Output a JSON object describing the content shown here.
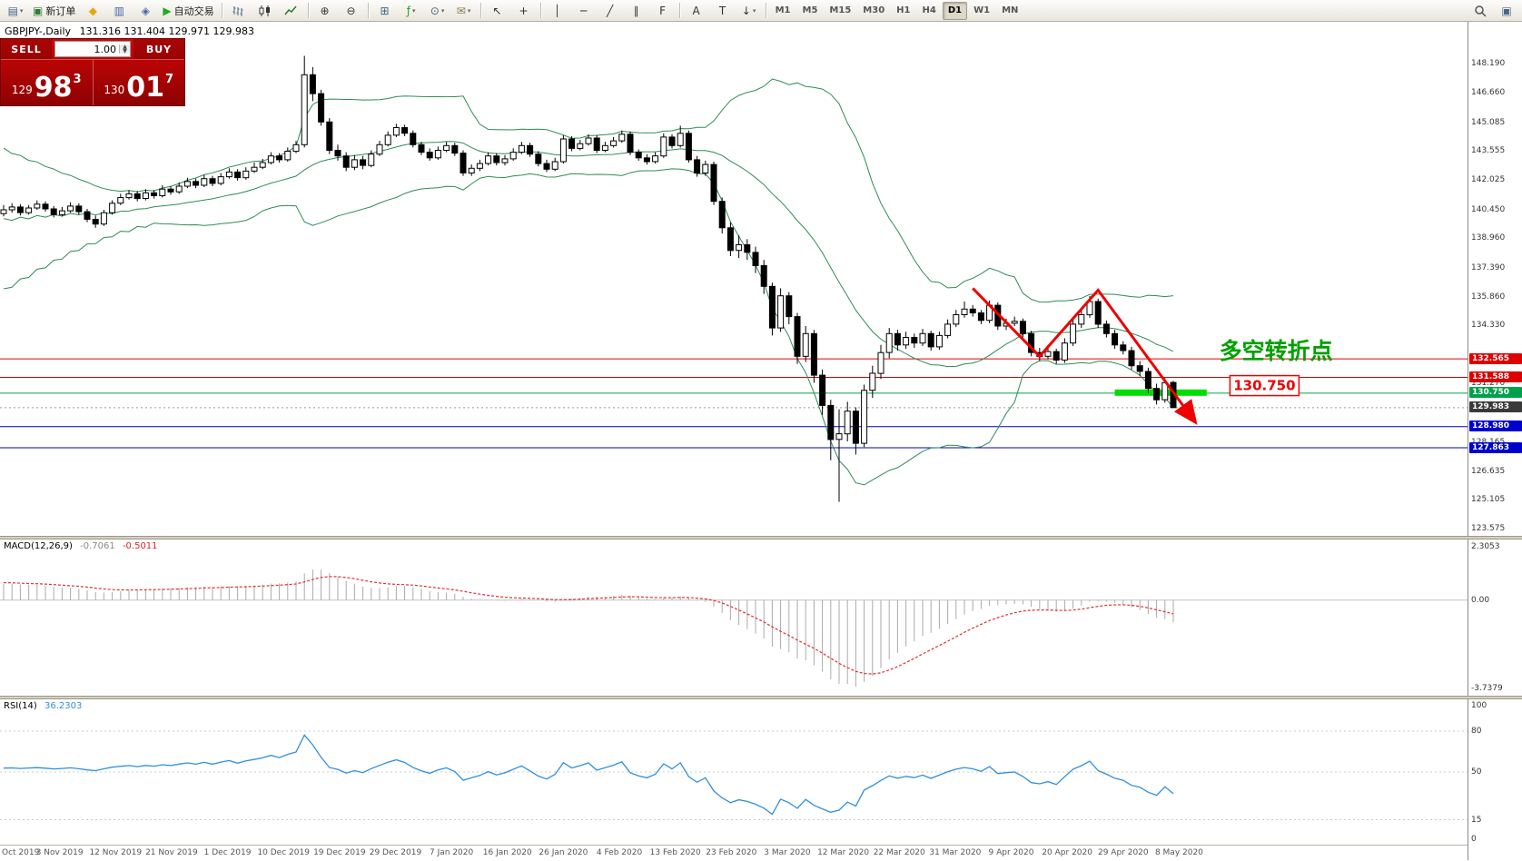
{
  "toolbar": {
    "items": [
      {
        "n": "new-chart-icon",
        "g": "▤",
        "c": "#446688",
        "dd": true
      },
      {
        "n": "new-order-button",
        "g": "▣",
        "c": "#2e7d32",
        "l": "新订单"
      },
      {
        "n": "metaeditor-icon",
        "g": "◆",
        "c": "#e6a817"
      },
      {
        "n": "market-watch-icon",
        "g": "▥",
        "c": "#4466aa"
      },
      {
        "n": "navigator-icon",
        "g": "◈",
        "c": "#4466aa"
      },
      {
        "n": "auto-trading-button",
        "g": "▶",
        "c": "#1faa1f",
        "l": "自动交易"
      },
      {
        "t": "sep"
      },
      {
        "n": "bar-chart-icon",
        "svg": "bars"
      },
      {
        "n": "candlestick-chart-icon",
        "svg": "candles"
      },
      {
        "n": "line-chart-icon",
        "svg": "line"
      },
      {
        "t": "sep"
      },
      {
        "n": "zoom-in-icon",
        "g": "⊕",
        "c": "#333"
      },
      {
        "n": "zoom-out-icon",
        "g": "⊖",
        "c": "#333"
      },
      {
        "t": "sep"
      },
      {
        "n": "tile-windows-icon",
        "g": "⊞",
        "c": "#446688"
      },
      {
        "n": "indicators-icon",
        "g": "ƒ",
        "c": "#1faa1f",
        "dd": true
      },
      {
        "n": "periods-icon",
        "g": "⊙",
        "c": "#446688",
        "dd": true
      },
      {
        "n": "templates-icon",
        "g": "✉",
        "c": "#8a7a50",
        "dd": true
      },
      {
        "t": "sep"
      },
      {
        "n": "cursor-icon",
        "g": "↖",
        "c": "#333"
      },
      {
        "n": "crosshair-icon",
        "g": "+",
        "c": "#333"
      },
      {
        "t": "sep"
      },
      {
        "n": "vertical-line-icon",
        "g": "│",
        "c": "#333"
      },
      {
        "n": "horizontal-line-icon",
        "g": "─",
        "c": "#333"
      },
      {
        "n": "trendline-icon",
        "g": "╱",
        "c": "#333"
      },
      {
        "n": "equidistant-channel-icon",
        "g": "∥",
        "c": "#333"
      },
      {
        "n": "fibonacci-icon",
        "g": "F",
        "c": "#333"
      },
      {
        "t": "sep"
      },
      {
        "n": "text-icon",
        "g": "A",
        "c": "#333"
      },
      {
        "n": "text-label-icon",
        "g": "T",
        "c": "#333"
      },
      {
        "n": "arrows-icon",
        "g": "↓",
        "c": "#333",
        "dd": true
      },
      {
        "t": "sep"
      },
      {
        "t": "tf"
      },
      {
        "t": "spring"
      },
      {
        "n": "search-icon",
        "svg": "magnifier"
      },
      {
        "n": "chat-icon",
        "g": "▣",
        "c": "#446688"
      }
    ],
    "timeframes": {
      "items": [
        "M1",
        "M5",
        "M15",
        "M30",
        "H1",
        "H4",
        "D1",
        "W1",
        "MN"
      ],
      "active": "D1"
    }
  },
  "chart_header": {
    "symbol": "GBPJPY-,Daily",
    "ohlc_text": "131.316 131.404 129.971 129.983"
  },
  "trade_panel": {
    "sell_label": "SELL",
    "buy_label": "BUY",
    "volume": "1.00",
    "sell_price_prefix": "129",
    "sell_price_big": "98",
    "sell_price_sup": "3",
    "buy_price_prefix": "130",
    "buy_price_big": "01",
    "buy_price_sup": "7"
  },
  "x_axis_dates": [
    "Oct 2019",
    "3 Nov 2019",
    "12 Nov 2019",
    "21 Nov 2019",
    "1 Dec 2019",
    "10 Dec 2019",
    "19 Dec 2019",
    "29 Dec 2019",
    "7 Jan 2020",
    "16 Jan 2020",
    "26 Jan 2020",
    "4 Feb 2020",
    "13 Feb 2020",
    "23 Feb 2020",
    "3 Mar 2020",
    "12 Mar 2020",
    "22 Mar 2020",
    "31 Mar 2020",
    "9 Apr 2020",
    "20 Apr 2020",
    "29 Apr 2020",
    "8 May 2020"
  ],
  "chart_data": [
    {
      "type": "candlestick",
      "symbol": "GBPJPY-",
      "timeframe": "Daily",
      "title": "GBPJPY-,Daily",
      "ylim": [
        123.2,
        150.4
      ],
      "y_axis_labels": [
        148.19,
        146.66,
        145.085,
        143.555,
        142.025,
        140.45,
        138.96,
        137.39,
        135.86,
        134.33,
        132.8,
        131.27,
        129.74,
        128.165,
        126.635,
        125.105,
        123.575
      ],
      "current_price": 129.983,
      "bollinger": {
        "period": 20,
        "deviation": 2,
        "color": "#2e8b57"
      },
      "horizontal_lines": [
        {
          "price": 132.565,
          "color": "#dd0000"
        },
        {
          "price": 131.588,
          "color": "#dd0000"
        },
        {
          "price": 130.75,
          "color": "#00a14b"
        },
        {
          "price": 128.98,
          "color": "#0000cc"
        },
        {
          "price": 127.863,
          "color": "#0000cc"
        }
      ],
      "support_zone": {
        "price": 130.78,
        "from_index": 133,
        "to_index": 144,
        "color": "#00dd00"
      },
      "trend_arrow": {
        "color": "#ee0000",
        "points": [
          [
            116,
            136.3
          ],
          [
            124,
            132.7
          ],
          [
            131,
            136.2
          ],
          [
            142.5,
            129.3
          ]
        ]
      },
      "annotations": [
        {
          "name": "turning-point-text",
          "text": "多空转折点",
          "index": 145.5,
          "price": 133.0,
          "color": "#00a000"
        },
        {
          "name": "support-price-label",
          "text": "130.750",
          "index": 147,
          "price": 131.15,
          "color": "#ee0000"
        }
      ],
      "warmup_closes": [
        136.6,
        142.6,
        136.9,
        142.4,
        137.2,
        142.2,
        137.5,
        142.0,
        137.8,
        141.8,
        138.1,
        141.6,
        138.4,
        141.3,
        138.7,
        141.1,
        139.0,
        140.9,
        139.3,
        140.6
      ],
      "ohlc": [
        [
          140.25,
          140.7,
          140.1,
          140.45
        ],
        [
          140.45,
          140.8,
          140.3,
          140.6
        ],
        [
          140.6,
          140.75,
          140.15,
          140.3
        ],
        [
          140.3,
          140.7,
          140.2,
          140.55
        ],
        [
          140.55,
          140.95,
          140.45,
          140.75
        ],
        [
          140.75,
          140.9,
          140.35,
          140.5
        ],
        [
          140.5,
          140.65,
          140.05,
          140.2
        ],
        [
          140.2,
          140.6,
          140.1,
          140.4
        ],
        [
          140.4,
          140.85,
          140.3,
          140.65
        ],
        [
          140.65,
          140.8,
          140.2,
          140.35
        ],
        [
          140.35,
          140.5,
          139.8,
          139.95
        ],
        [
          139.95,
          140.15,
          139.5,
          139.7
        ],
        [
          139.7,
          140.45,
          139.6,
          140.3
        ],
        [
          140.3,
          140.95,
          140.2,
          140.8
        ],
        [
          140.8,
          141.3,
          140.7,
          141.1
        ],
        [
          141.1,
          141.5,
          141.0,
          141.3
        ],
        [
          141.3,
          141.45,
          140.9,
          141.05
        ],
        [
          141.05,
          141.55,
          140.95,
          141.35
        ],
        [
          141.35,
          141.5,
          141.05,
          141.2
        ],
        [
          141.2,
          141.75,
          141.1,
          141.55
        ],
        [
          141.55,
          141.7,
          141.25,
          141.4
        ],
        [
          141.4,
          141.9,
          141.3,
          141.7
        ],
        [
          141.7,
          142.15,
          141.6,
          141.95
        ],
        [
          141.95,
          142.1,
          141.6,
          141.75
        ],
        [
          141.75,
          142.3,
          141.65,
          142.1
        ],
        [
          142.1,
          142.25,
          141.7,
          141.85
        ],
        [
          141.85,
          142.4,
          141.75,
          142.2
        ],
        [
          142.2,
          142.65,
          142.1,
          142.45
        ],
        [
          142.45,
          142.6,
          142.0,
          142.15
        ],
        [
          142.15,
          142.7,
          142.05,
          142.5
        ],
        [
          142.5,
          142.95,
          142.4,
          142.7
        ],
        [
          142.7,
          143.15,
          142.6,
          142.95
        ],
        [
          142.95,
          143.5,
          142.85,
          143.3
        ],
        [
          143.3,
          143.45,
          142.95,
          143.1
        ],
        [
          143.1,
          143.75,
          143.0,
          143.55
        ],
        [
          143.55,
          144.1,
          143.45,
          143.9
        ],
        [
          143.9,
          148.6,
          143.75,
          147.6
        ],
        [
          147.6,
          148.0,
          146.2,
          146.6
        ],
        [
          146.6,
          146.8,
          144.9,
          145.1
        ],
        [
          145.1,
          145.3,
          143.4,
          143.6
        ],
        [
          143.6,
          143.9,
          143.05,
          143.3
        ],
        [
          143.3,
          143.5,
          142.5,
          142.7
        ],
        [
          142.7,
          143.35,
          142.55,
          143.1
        ],
        [
          143.1,
          143.3,
          142.6,
          142.8
        ],
        [
          142.8,
          143.6,
          142.7,
          143.4
        ],
        [
          143.4,
          144.1,
          143.3,
          143.9
        ],
        [
          143.9,
          144.6,
          143.8,
          144.4
        ],
        [
          144.4,
          145.0,
          144.3,
          144.8
        ],
        [
          144.8,
          144.95,
          144.35,
          144.5
        ],
        [
          144.5,
          144.65,
          143.75,
          143.9
        ],
        [
          143.9,
          144.05,
          143.35,
          143.5
        ],
        [
          143.5,
          143.7,
          143.05,
          143.2
        ],
        [
          143.2,
          143.8,
          143.1,
          143.6
        ],
        [
          143.6,
          144.05,
          143.5,
          143.85
        ],
        [
          143.85,
          144.0,
          143.3,
          143.45
        ],
        [
          143.45,
          143.6,
          142.25,
          142.4
        ],
        [
          142.4,
          142.85,
          142.25,
          142.65
        ],
        [
          142.65,
          143.1,
          142.5,
          142.9
        ],
        [
          142.9,
          143.5,
          142.8,
          143.3
        ],
        [
          143.3,
          143.45,
          142.8,
          142.95
        ],
        [
          142.95,
          143.35,
          142.8,
          143.15
        ],
        [
          143.15,
          143.7,
          143.05,
          143.5
        ],
        [
          143.5,
          144.05,
          143.4,
          143.85
        ],
        [
          143.85,
          144.0,
          143.25,
          143.4
        ],
        [
          143.4,
          143.55,
          142.75,
          142.9
        ],
        [
          142.9,
          143.1,
          142.45,
          142.6
        ],
        [
          142.6,
          143.2,
          142.5,
          143.0
        ],
        [
          143.0,
          144.4,
          142.9,
          144.2
        ],
        [
          144.2,
          144.35,
          143.55,
          143.7
        ],
        [
          143.7,
          144.15,
          143.6,
          143.95
        ],
        [
          143.95,
          144.45,
          143.85,
          144.25
        ],
        [
          144.25,
          144.4,
          143.45,
          143.6
        ],
        [
          143.6,
          144.05,
          143.5,
          143.85
        ],
        [
          143.85,
          144.3,
          143.75,
          144.1
        ],
        [
          144.1,
          144.65,
          144.0,
          144.45
        ],
        [
          144.45,
          144.6,
          143.35,
          143.5
        ],
        [
          143.5,
          143.65,
          143.05,
          143.2
        ],
        [
          143.2,
          143.4,
          142.85,
          143.0
        ],
        [
          143.0,
          143.5,
          142.9,
          143.3
        ],
        [
          143.3,
          144.5,
          143.2,
          144.3
        ],
        [
          144.3,
          144.45,
          143.7,
          143.85
        ],
        [
          143.85,
          144.9,
          143.75,
          144.5
        ],
        [
          144.5,
          144.65,
          142.95,
          143.1
        ],
        [
          143.1,
          143.3,
          142.2,
          142.4
        ],
        [
          142.4,
          143.05,
          142.25,
          142.85
        ],
        [
          142.85,
          143.0,
          140.7,
          140.9
        ],
        [
          140.9,
          141.1,
          139.2,
          139.5
        ],
        [
          139.5,
          139.8,
          138.0,
          138.3
        ],
        [
          138.3,
          139.1,
          137.9,
          138.6
        ],
        [
          138.6,
          138.9,
          137.8,
          138.2
        ],
        [
          138.2,
          138.5,
          137.1,
          137.5
        ],
        [
          137.5,
          137.8,
          136.0,
          136.4
        ],
        [
          136.4,
          136.6,
          133.8,
          134.2
        ],
        [
          134.2,
          136.3,
          134.0,
          135.9
        ],
        [
          135.9,
          136.1,
          134.4,
          134.8
        ],
        [
          134.8,
          135.0,
          132.3,
          132.7
        ],
        [
          132.7,
          134.3,
          132.4,
          133.9
        ],
        [
          133.9,
          134.1,
          131.3,
          131.7
        ],
        [
          131.7,
          132.0,
          129.6,
          130.1
        ],
        [
          130.1,
          130.4,
          127.2,
          128.3
        ],
        [
          128.3,
          129.9,
          125.0,
          128.6
        ],
        [
          128.6,
          130.3,
          128.2,
          129.8
        ],
        [
          129.8,
          130.0,
          127.5,
          128.1
        ],
        [
          128.1,
          131.2,
          127.9,
          130.9
        ],
        [
          130.9,
          132.2,
          130.5,
          131.8
        ],
        [
          131.8,
          133.3,
          131.5,
          132.9
        ],
        [
          132.9,
          134.2,
          132.6,
          133.9
        ],
        [
          133.9,
          134.1,
          133.0,
          133.3
        ],
        [
          133.3,
          134.0,
          133.1,
          133.7
        ],
        [
          133.7,
          133.9,
          133.15,
          133.4
        ],
        [
          133.4,
          134.15,
          133.25,
          133.9
        ],
        [
          133.9,
          134.05,
          133.0,
          133.2
        ],
        [
          133.2,
          134.0,
          133.05,
          133.8
        ],
        [
          133.8,
          134.65,
          133.65,
          134.4
        ],
        [
          134.4,
          135.15,
          134.25,
          134.9
        ],
        [
          134.9,
          135.6,
          134.75,
          135.2
        ],
        [
          135.2,
          135.4,
          134.8,
          135.0
        ],
        [
          135.0,
          135.15,
          134.4,
          134.6
        ],
        [
          134.6,
          135.65,
          134.45,
          135.4
        ],
        [
          135.4,
          135.55,
          134.1,
          134.3
        ],
        [
          134.3,
          134.7,
          134.1,
          134.45
        ],
        [
          134.45,
          134.8,
          134.3,
          134.55
        ],
        [
          134.55,
          134.7,
          133.7,
          133.9
        ],
        [
          133.9,
          134.05,
          132.7,
          132.9
        ],
        [
          132.9,
          133.15,
          132.45,
          132.7
        ],
        [
          132.7,
          133.2,
          132.55,
          132.95
        ],
        [
          132.95,
          133.1,
          132.3,
          132.5
        ],
        [
          132.5,
          133.65,
          132.35,
          133.4
        ],
        [
          133.4,
          134.65,
          133.25,
          134.4
        ],
        [
          134.4,
          135.15,
          134.2,
          134.9
        ],
        [
          134.9,
          135.9,
          134.75,
          135.6
        ],
        [
          135.6,
          135.75,
          134.2,
          134.4
        ],
        [
          134.4,
          134.6,
          133.7,
          133.9
        ],
        [
          133.9,
          134.1,
          133.1,
          133.3
        ],
        [
          133.3,
          133.5,
          132.8,
          133.0
        ],
        [
          133.0,
          133.2,
          132.0,
          132.2
        ],
        [
          132.2,
          132.45,
          131.65,
          131.9
        ],
        [
          131.9,
          132.1,
          130.75,
          131.0
        ],
        [
          131.0,
          131.25,
          130.15,
          130.4
        ],
        [
          130.4,
          131.55,
          130.25,
          131.3
        ],
        [
          131.316,
          131.404,
          129.971,
          129.983
        ]
      ]
    },
    {
      "type": "macd",
      "label": "MACD(12,26,9)",
      "fast": 12,
      "slow": 26,
      "signal": 9,
      "main_value": "-0.7061",
      "signal_value": "-0.5011",
      "y_axis_labels": [
        "2.3053",
        "0.00",
        "-3.7379"
      ],
      "ylim": [
        -3.7379,
        2.3053
      ],
      "histogram_color": "#aaaaaa",
      "signal_color": "#e03030"
    },
    {
      "type": "rsi",
      "label": "RSI(14)",
      "period": 14,
      "value": "36.2303",
      "levels": [
        80,
        50,
        15
      ],
      "y_axis_labels": [
        100,
        80,
        50,
        15,
        0
      ],
      "ylim": [
        0,
        100
      ],
      "line_color": "#2f8fe0"
    }
  ]
}
